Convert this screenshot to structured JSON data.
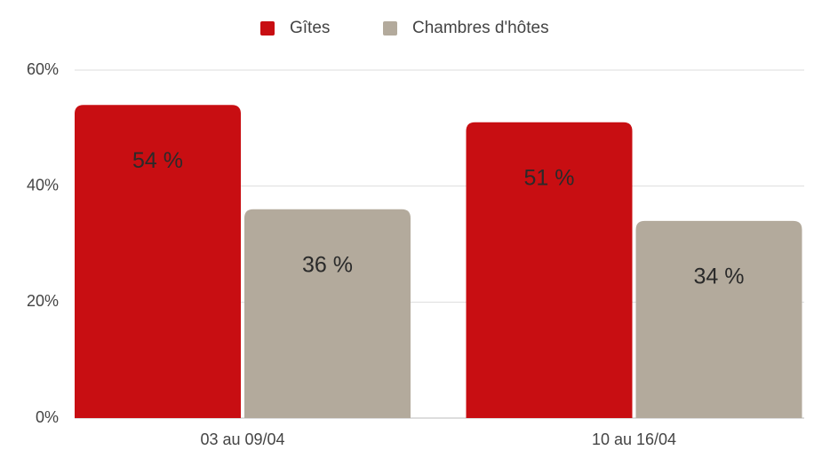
{
  "chart_data": {
    "type": "bar",
    "categories": [
      "03 au 09/04",
      "10 au 16/04"
    ],
    "series": [
      {
        "name": "Gîtes",
        "color": "#c80e12",
        "values": [
          54,
          51
        ],
        "value_labels": [
          "54 %",
          "51 %"
        ]
      },
      {
        "name": "Chambres d'hôtes",
        "color": "#b3aa9c",
        "values": [
          36,
          34
        ],
        "value_labels": [
          "36 %",
          "34 %"
        ]
      }
    ],
    "ylim": [
      0,
      60
    ],
    "yticks": [
      {
        "value": 0,
        "label": "0%"
      },
      {
        "value": 20,
        "label": "20%"
      },
      {
        "value": 40,
        "label": "40%"
      },
      {
        "value": 60,
        "label": "60%"
      }
    ],
    "grid": true,
    "legend": "top"
  }
}
